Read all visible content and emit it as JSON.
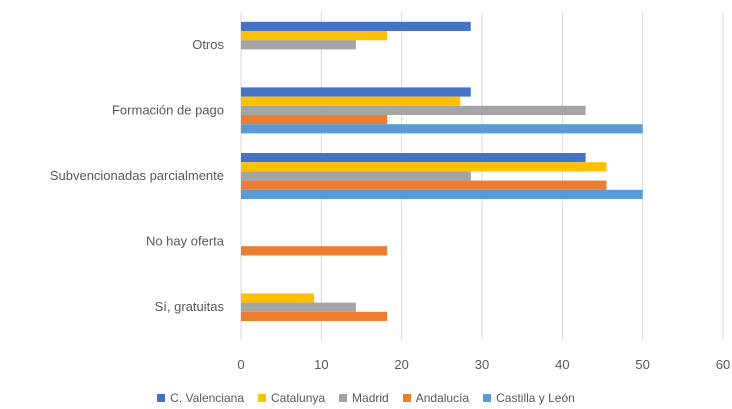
{
  "chart_data": {
    "type": "bar",
    "orientation": "horizontal",
    "categories": [
      "Otros",
      "Formación de pago",
      "Subvencionadas parcialmente",
      "No hay oferta",
      "Sí, gratuitas"
    ],
    "series": [
      {
        "name": "C. Valenciana",
        "color": "#4472C4",
        "values": [
          28.6,
          28.6,
          42.9,
          0,
          0
        ]
      },
      {
        "name": "Catalunya",
        "color": "#FFC000",
        "values": [
          18.2,
          27.3,
          45.5,
          0,
          9.1
        ]
      },
      {
        "name": "Madrid",
        "color": "#A5A5A5",
        "values": [
          14.3,
          42.9,
          28.6,
          0,
          14.3
        ]
      },
      {
        "name": "Andalucía",
        "color": "#ED7D31",
        "values": [
          0,
          18.2,
          45.5,
          18.2,
          18.2
        ]
      },
      {
        "name": "Castilla y León",
        "color": "#5B9BD5",
        "values": [
          0,
          50,
          50,
          0,
          0
        ]
      }
    ],
    "xlim": [
      0,
      60
    ],
    "xticks": [
      "0",
      "10",
      "20",
      "30",
      "40",
      "50",
      "60"
    ],
    "grid": "vertical",
    "legend_position": "bottom",
    "title": "",
    "xlabel": "",
    "ylabel": ""
  }
}
